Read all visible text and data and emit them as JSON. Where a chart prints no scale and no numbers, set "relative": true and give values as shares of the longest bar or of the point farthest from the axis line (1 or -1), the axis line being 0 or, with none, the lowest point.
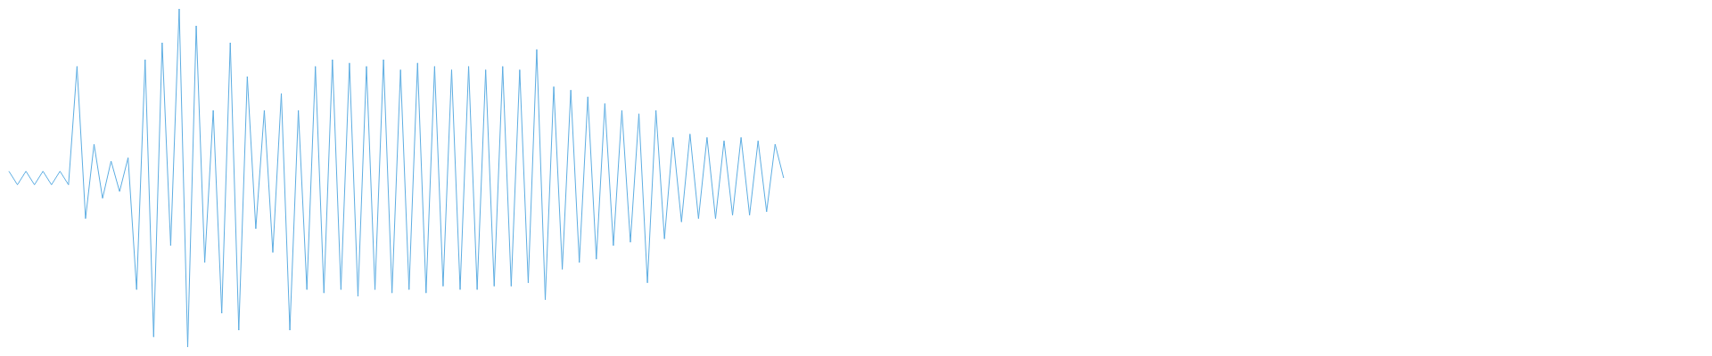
{
  "chart_data": {
    "type": "line",
    "relative": true,
    "color": "#5dade2",
    "categories": [
      null,
      null,
      null,
      null,
      null,
      null,
      null,
      null,
      null,
      null,
      null,
      null,
      null,
      null,
      null,
      null,
      null,
      null,
      null,
      null,
      null,
      null,
      null,
      null,
      null,
      null,
      null,
      null,
      null,
      null,
      null,
      null,
      null,
      null,
      null,
      null,
      null,
      null,
      null,
      null,
      null,
      null,
      null,
      null,
      null,
      null,
      null,
      null,
      null,
      null,
      null,
      null,
      null,
      null,
      null,
      null,
      null,
      null,
      null,
      null,
      null,
      null,
      null,
      null,
      null,
      null,
      null,
      null,
      null,
      null,
      null,
      null,
      null,
      null,
      null,
      null,
      null,
      null,
      null,
      null,
      null,
      null,
      null,
      null,
      null,
      null,
      null,
      null,
      null,
      null,
      null,
      null,
      null,
      null,
      null,
      null,
      null,
      null,
      null,
      null,
      null,
      null,
      null,
      null,
      null,
      null,
      null,
      null,
      null,
      null,
      null,
      null,
      null,
      null,
      null,
      null,
      null,
      null,
      null,
      null,
      null,
      null,
      null,
      null,
      null,
      null,
      null,
      null,
      null,
      null,
      null,
      null,
      null,
      null,
      null,
      null,
      null,
      null,
      null,
      null,
      null,
      null,
      null,
      null,
      null,
      null,
      null,
      null,
      null,
      null,
      null,
      null,
      null,
      null,
      null,
      null,
      null,
      null,
      null,
      null,
      null,
      null,
      null,
      null,
      null,
      null,
      null,
      null,
      null,
      null,
      null,
      null,
      null,
      null,
      null,
      null,
      null,
      null,
      null,
      null,
      null,
      null,
      null,
      null,
      null,
      null,
      null,
      null,
      null,
      null,
      null,
      null,
      null,
      null,
      null,
      null,
      null,
      null,
      null,
      null
    ],
    "values": [
      0.52,
      0.48,
      0.52,
      0.48,
      0.52,
      0.48,
      0.52,
      0.48,
      0.83,
      0.38,
      0.6,
      0.44,
      0.55,
      0.46,
      0.56,
      0.17,
      0.85,
      0.03,
      0.9,
      0.3,
      1,
      0,
      0.95,
      0.25,
      0.7,
      0.1,
      0.9,
      0.05,
      0.8,
      0.35,
      0.7,
      0.28,
      0.75,
      0.05,
      0.7,
      0.17,
      0.83,
      0.16,
      0.85,
      0.17,
      0.84,
      0.15,
      0.83,
      0.17,
      0.85,
      0.16,
      0.82,
      0.17,
      0.84,
      0.16,
      0.83,
      0.18,
      0.82,
      0.17,
      0.83,
      0.17,
      0.82,
      0.18,
      0.83,
      0.18,
      0.82,
      0.19,
      0.88,
      0.14,
      0.77,
      0.23,
      0.76,
      0.25,
      0.74,
      0.26,
      0.72,
      0.3,
      0.7,
      0.31,
      0.69,
      0.19,
      0.7,
      0.32,
      0.62,
      0.37,
      0.63,
      0.38,
      0.62,
      0.38,
      0.61,
      0.39,
      0.62,
      0.39,
      0.61,
      0.4,
      0.6,
      0.5,
      null,
      null,
      null,
      null,
      null,
      null,
      null,
      null,
      null,
      null,
      null,
      null,
      null,
      null,
      null,
      null,
      null,
      null,
      null,
      null,
      null,
      null,
      null,
      null,
      null,
      null,
      null,
      null,
      null,
      null,
      null,
      null,
      null,
      null,
      null,
      null,
      null,
      null,
      null,
      null,
      null,
      null,
      null,
      null,
      null,
      null,
      null,
      null,
      null,
      null,
      null,
      null,
      null,
      null,
      null,
      null,
      null,
      null,
      null,
      null,
      null,
      null,
      null,
      null,
      null,
      null,
      null,
      null,
      null,
      null,
      null,
      null,
      null,
      null,
      null,
      null,
      null,
      null,
      null,
      null,
      null,
      null,
      null,
      null,
      null,
      null,
      null,
      null,
      null,
      null,
      null,
      null,
      null,
      null,
      null,
      null,
      null,
      null,
      null,
      null,
      null,
      null,
      null,
      null,
      null,
      null,
      null,
      null
    ]
  }
}
